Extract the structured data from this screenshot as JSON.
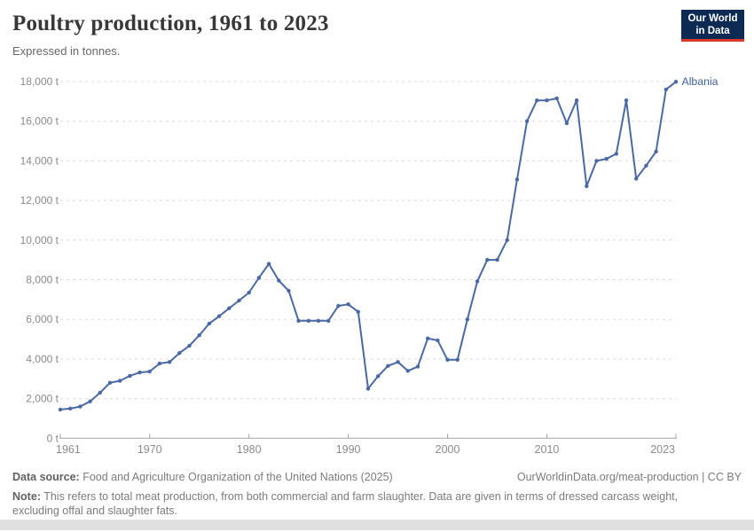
{
  "header": {
    "title": "Poultry production, 1961 to 2023",
    "subtitle": "Expressed in tonnes."
  },
  "logo": {
    "line1": "Our World",
    "line2": "in Data"
  },
  "colors": {
    "line": "#4a69a3",
    "series_label": "#3d5f9e",
    "logo_navy": "#0d2b52",
    "logo_red": "#e0362c",
    "grid": "#dcdcdc",
    "axis": "#a3a3a3",
    "tick_text": "#8a8a8a"
  },
  "chart_data": {
    "type": "line",
    "title": "Poultry production, 1961 to 2023",
    "subtitle": "Expressed in tonnes.",
    "ylabel": "",
    "xlabel": "",
    "unit": "t",
    "grid": true,
    "legend_position": "end-of-line label",
    "xlim": [
      1961,
      2023
    ],
    "ylim": [
      0,
      18000
    ],
    "x_ticks": [
      {
        "v": 1961,
        "label": "1961"
      },
      {
        "v": 1970,
        "label": "1970"
      },
      {
        "v": 1980,
        "label": "1980"
      },
      {
        "v": 1990,
        "label": "1990"
      },
      {
        "v": 2000,
        "label": "2000"
      },
      {
        "v": 2010,
        "label": "2010"
      },
      {
        "v": 2023,
        "label": "2023"
      }
    ],
    "y_ticks": [
      {
        "v": 0,
        "label": "0 t"
      },
      {
        "v": 2000,
        "label": "2,000 t"
      },
      {
        "v": 4000,
        "label": "4,000 t"
      },
      {
        "v": 6000,
        "label": "6,000 t"
      },
      {
        "v": 8000,
        "label": "8,000 t"
      },
      {
        "v": 10000,
        "label": "10,000 t"
      },
      {
        "v": 12000,
        "label": "12,000 t"
      },
      {
        "v": 14000,
        "label": "14,000 t"
      },
      {
        "v": 16000,
        "label": "16,000 t"
      },
      {
        "v": 18000,
        "label": "18,000 t"
      }
    ],
    "series": [
      {
        "name": "Albania",
        "x": [
          1961,
          1962,
          1963,
          1964,
          1965,
          1966,
          1967,
          1968,
          1969,
          1970,
          1971,
          1972,
          1973,
          1974,
          1975,
          1976,
          1977,
          1978,
          1979,
          1980,
          1981,
          1982,
          1983,
          1984,
          1985,
          1986,
          1987,
          1988,
          1989,
          1990,
          1991,
          1992,
          1993,
          1994,
          1995,
          1996,
          1997,
          1998,
          1999,
          2000,
          2001,
          2002,
          2003,
          2004,
          2005,
          2006,
          2007,
          2008,
          2009,
          2010,
          2011,
          2012,
          2013,
          2014,
          2015,
          2016,
          2017,
          2018,
          2019,
          2020,
          2021,
          2022,
          2023
        ],
        "values": [
          1450,
          1500,
          1600,
          1860,
          2300,
          2800,
          2900,
          3150,
          3320,
          3370,
          3770,
          3850,
          4300,
          4670,
          5200,
          5790,
          6160,
          6560,
          6950,
          7350,
          8100,
          8800,
          7960,
          7440,
          5930,
          5930,
          5930,
          5930,
          6680,
          6760,
          6380,
          2500,
          3130,
          3650,
          3850,
          3400,
          3620,
          5040,
          4940,
          3960,
          3960,
          6000,
          7920,
          9000,
          9000,
          10000,
          13060,
          16000,
          17050,
          17050,
          17150,
          15900,
          17050,
          12720,
          14000,
          14100,
          14360,
          17050,
          13100,
          13760,
          14470,
          17600,
          17990
        ]
      }
    ]
  },
  "footer": {
    "source_bold": "Data source:",
    "source_text": " Food and Agriculture Organization of the United Nations (2025)",
    "link": "OurWorldinData.org/meat-production | CC BY",
    "note_bold": "Note:",
    "note_text": " This refers to total meat production, from both commercial and farm slaughter. Data are given in terms of dressed carcass weight, excluding offal and slaughter fats."
  }
}
